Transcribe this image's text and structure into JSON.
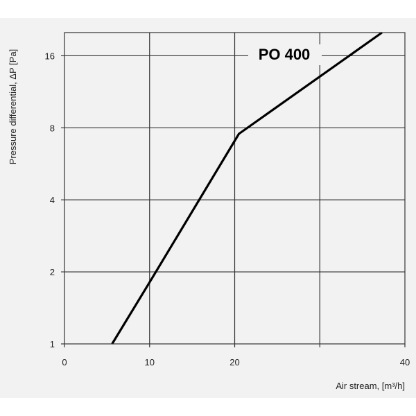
{
  "chart_data": {
    "type": "line",
    "title": "",
    "xlabel": "Air stream, [m³/h]",
    "ylabel": "Pressure differential, ΔP [Pa]",
    "xlim": [
      0,
      40
    ],
    "ylim": [
      1,
      20
    ],
    "yscale": "log2",
    "grid": true,
    "x_ticks": [
      0,
      10,
      20,
      30,
      40
    ],
    "x_tick_labels": [
      "0",
      "10",
      "20",
      "",
      "40"
    ],
    "y_ticks": [
      1,
      2,
      4,
      8,
      16
    ],
    "y_tick_labels": [
      "1",
      "2",
      "4",
      "8",
      "16"
    ],
    "series": [
      {
        "name": "PO 400",
        "x": [
          5.6,
          10,
          20.5,
          37.3
        ],
        "y": [
          1,
          1.81,
          7.55,
          20
        ],
        "color": "#000000"
      }
    ]
  }
}
